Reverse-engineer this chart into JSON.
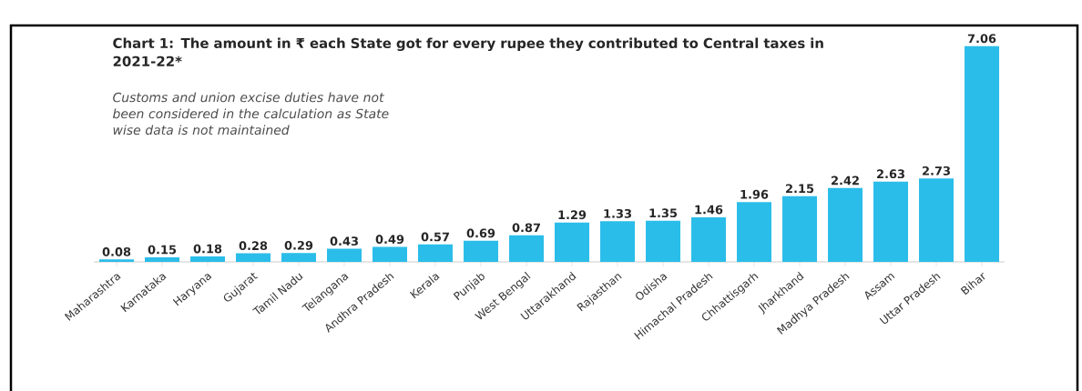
{
  "chart_data": {
    "type": "bar",
    "title": "**Chart 1:** The amount in ₹ each State got for every rupee they contributed to Central taxes in 2021-22*",
    "annotations": [
      "*Customs and union excise duties have not been considered in the calculation as State wise data is not maintained*"
    ],
    "categories": [
      "Maharashtra",
      "Karnataka",
      "Haryana",
      "Gujarat",
      "Tamil Nadu",
      "Telangana",
      "Andhra Pradesh",
      "Kerala",
      "Punjab",
      "West Bengal",
      "Uttarakhand",
      "Rajasthan",
      "Odisha",
      "Himachal Pradesh",
      "Chhattisgarh",
      "Jharkhand",
      "Madhya Pradesh",
      "Assam",
      "Uttar Pradesh",
      "Bihar"
    ],
    "values": [
      0.08,
      0.15,
      0.18,
      0.28,
      0.29,
      0.43,
      0.49,
      0.57,
      0.69,
      0.87,
      1.29,
      1.33,
      1.35,
      1.46,
      1.96,
      2.15,
      2.42,
      2.63,
      2.73,
      7.06
    ],
    "color": "#2bbde9",
    "data_labels": true
  }
}
